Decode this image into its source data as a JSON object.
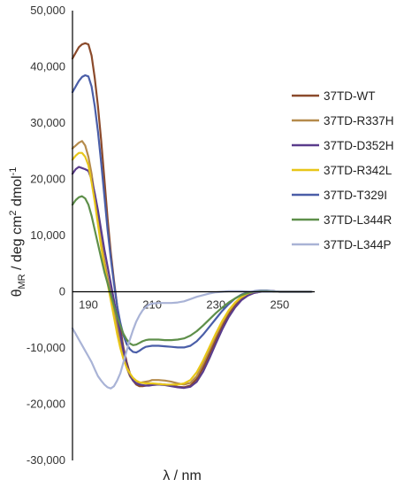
{
  "chart_data": {
    "type": "line",
    "title": "",
    "xlabel": "λ / nm",
    "ylabel": {
      "theta": "θ",
      "sub": "MR",
      "rest": " / deg cm",
      "sup1": "2",
      "rest2": " dmol",
      "sup2": "-1"
    },
    "xlim": [
      185,
      261
    ],
    "ylim": [
      -30000,
      50000
    ],
    "y_ticks": [
      50000,
      40000,
      30000,
      20000,
      10000,
      0,
      -10000,
      -20000,
      -30000
    ],
    "y_tick_labels": [
      "50,000",
      "40,000",
      "30,000",
      "20,000",
      "10,000",
      "0",
      "-10,000",
      "-20,000",
      "-30,000"
    ],
    "x_ticks": [
      190,
      210,
      230,
      250
    ],
    "x_tick_labels": [
      "190",
      "210",
      "230",
      "250"
    ],
    "grid": false,
    "legend_position": "right",
    "series": [
      {
        "name": "37TD-WT",
        "color": "#8B4A2B",
        "x": [
          185,
          186,
          187,
          188,
          189,
          190,
          191,
          192,
          193,
          194,
          195,
          196,
          197,
          198,
          199,
          200,
          201,
          202,
          203,
          204,
          205,
          206,
          207,
          208,
          209,
          210,
          212,
          214,
          216,
          218,
          220,
          222,
          224,
          226,
          228,
          230,
          232,
          234,
          236,
          238,
          240,
          242,
          244,
          246,
          248,
          250,
          252,
          255,
          258,
          260
        ],
        "y": [
          41500,
          42500,
          43500,
          44000,
          44200,
          44000,
          42000,
          38000,
          33000,
          27000,
          20000,
          13000,
          7000,
          2000,
          -2500,
          -6500,
          -10000,
          -12500,
          -14500,
          -15800,
          -16500,
          -16800,
          -16800,
          -16700,
          -16600,
          -16500,
          -16400,
          -16500,
          -16700,
          -16900,
          -17000,
          -16700,
          -15500,
          -13500,
          -11000,
          -8500,
          -6000,
          -4000,
          -2500,
          -1300,
          -600,
          -200,
          0,
          100,
          100,
          0,
          0,
          0,
          0,
          0
        ]
      },
      {
        "name": "37TD-R337H",
        "color": "#B58B4C",
        "x": [
          185,
          186,
          187,
          188,
          189,
          190,
          191,
          192,
          193,
          194,
          195,
          196,
          197,
          198,
          199,
          200,
          201,
          202,
          203,
          204,
          205,
          206,
          207,
          208,
          209,
          210,
          212,
          214,
          216,
          218,
          220,
          222,
          224,
          226,
          228,
          230,
          232,
          234,
          236,
          238,
          240,
          242,
          244,
          246,
          248,
          250,
          252,
          255,
          258,
          260
        ],
        "y": [
          25500,
          26000,
          26500,
          26800,
          26000,
          24000,
          21000,
          17000,
          13000,
          9000,
          5500,
          2500,
          -200,
          -3000,
          -6000,
          -9000,
          -11500,
          -13500,
          -15000,
          -15800,
          -16200,
          -16200,
          -16100,
          -16000,
          -15900,
          -15700,
          -15700,
          -15800,
          -16000,
          -16300,
          -16500,
          -16200,
          -15000,
          -12800,
          -10300,
          -7800,
          -5500,
          -3500,
          -2000,
          -1000,
          -400,
          -100,
          50,
          100,
          50,
          0,
          0,
          0,
          0,
          0
        ]
      },
      {
        "name": "37TD-D352H",
        "color": "#5A3C8C",
        "x": [
          185,
          186,
          187,
          188,
          189,
          190,
          191,
          192,
          193,
          194,
          195,
          196,
          197,
          198,
          199,
          200,
          201,
          202,
          203,
          204,
          205,
          206,
          207,
          208,
          209,
          210,
          212,
          214,
          216,
          218,
          220,
          222,
          224,
          226,
          228,
          230,
          232,
          234,
          236,
          238,
          240,
          242,
          244,
          246,
          248,
          250,
          252,
          255,
          258,
          260
        ],
        "y": [
          21000,
          21800,
          22200,
          22000,
          21800,
          21500,
          20000,
          17500,
          14500,
          11000,
          7500,
          4500,
          1500,
          -1500,
          -4500,
          -7500,
          -10500,
          -13000,
          -14800,
          -15800,
          -16300,
          -16500,
          -16600,
          -16700,
          -16700,
          -16600,
          -16500,
          -16600,
          -16800,
          -17000,
          -17100,
          -16900,
          -16000,
          -14200,
          -11800,
          -9200,
          -6700,
          -4500,
          -2800,
          -1500,
          -700,
          -200,
          0,
          100,
          100,
          0,
          0,
          0,
          0,
          0
        ]
      },
      {
        "name": "37TD-R342L",
        "color": "#E8C619",
        "x": [
          185,
          186,
          187,
          188,
          189,
          190,
          191,
          192,
          193,
          194,
          195,
          196,
          197,
          198,
          199,
          200,
          201,
          202,
          203,
          204,
          205,
          206,
          207,
          208,
          209,
          210,
          212,
          214,
          216,
          218,
          220,
          222,
          224,
          226,
          228,
          230,
          232,
          234,
          236,
          238,
          240,
          242,
          244,
          246,
          248,
          250,
          252,
          255,
          258,
          260
        ],
        "y": [
          23500,
          24200,
          24700,
          24700,
          24000,
          22500,
          19500,
          16000,
          12000,
          8000,
          4500,
          1500,
          -1500,
          -4500,
          -7500,
          -10000,
          -12000,
          -13500,
          -14500,
          -15300,
          -15800,
          -16100,
          -16200,
          -16300,
          -16300,
          -16300,
          -16400,
          -16500,
          -16500,
          -16500,
          -16300,
          -15700,
          -14300,
          -12200,
          -9800,
          -7400,
          -5200,
          -3300,
          -1900,
          -900,
          -300,
          0,
          100,
          100,
          0,
          0,
          0,
          0,
          0,
          0
        ]
      },
      {
        "name": "37TD-T329I",
        "color": "#4A5EA8",
        "x": [
          185,
          186,
          187,
          188,
          189,
          190,
          191,
          192,
          193,
          194,
          195,
          196,
          197,
          198,
          199,
          200,
          201,
          202,
          203,
          204,
          205,
          206,
          207,
          208,
          209,
          210,
          212,
          214,
          216,
          218,
          220,
          222,
          224,
          226,
          228,
          230,
          232,
          234,
          236,
          238,
          240,
          242,
          244,
          246,
          248,
          250,
          252,
          255,
          258,
          260
        ],
        "y": [
          35500,
          36500,
          37500,
          38200,
          38500,
          38300,
          36500,
          33000,
          28500,
          23000,
          17000,
          11000,
          6000,
          1500,
          -2500,
          -5500,
          -7800,
          -9300,
          -10200,
          -10700,
          -10800,
          -10500,
          -10100,
          -9800,
          -9700,
          -9600,
          -9600,
          -9700,
          -9800,
          -9900,
          -9900,
          -9600,
          -8800,
          -7600,
          -6200,
          -4800,
          -3400,
          -2200,
          -1200,
          -500,
          -100,
          100,
          200,
          200,
          100,
          0,
          0,
          0,
          0,
          0
        ]
      },
      {
        "name": "37TD-L344R",
        "color": "#5E8F4A",
        "x": [
          185,
          186,
          187,
          188,
          189,
          190,
          191,
          192,
          193,
          194,
          195,
          196,
          197,
          198,
          199,
          200,
          201,
          202,
          203,
          204,
          205,
          206,
          207,
          208,
          209,
          210,
          212,
          214,
          216,
          218,
          220,
          222,
          224,
          226,
          228,
          230,
          232,
          234,
          236,
          238,
          240,
          242,
          244,
          246,
          248,
          250,
          252,
          255,
          258,
          260
        ],
        "y": [
          15500,
          16300,
          16800,
          17000,
          16600,
          15500,
          13500,
          11000,
          8500,
          6000,
          3500,
          1500,
          -500,
          -2500,
          -4500,
          -6000,
          -7500,
          -8500,
          -9200,
          -9500,
          -9400,
          -9100,
          -8800,
          -8600,
          -8500,
          -8500,
          -8500,
          -8600,
          -8600,
          -8500,
          -8300,
          -7800,
          -7000,
          -6000,
          -4900,
          -3800,
          -2800,
          -1900,
          -1200,
          -600,
          -200,
          0,
          100,
          100,
          50,
          0,
          0,
          0,
          0,
          0
        ]
      },
      {
        "name": "37TD-L344P",
        "color": "#A9B3D6",
        "x": [
          185,
          186,
          187,
          188,
          189,
          190,
          191,
          192,
          193,
          194,
          195,
          196,
          197,
          198,
          199,
          200,
          201,
          202,
          203,
          204,
          205,
          206,
          207,
          208,
          209,
          210,
          212,
          214,
          216,
          218,
          220,
          222,
          224,
          226,
          228,
          230,
          232,
          234,
          236,
          238,
          240,
          242,
          244,
          246,
          248,
          250,
          252,
          255,
          258,
          260
        ],
        "y": [
          -6500,
          -7500,
          -8500,
          -9500,
          -10500,
          -11500,
          -12500,
          -13800,
          -15000,
          -15800,
          -16500,
          -17000,
          -17200,
          -16800,
          -15800,
          -14500,
          -12500,
          -10500,
          -8500,
          -6800,
          -5300,
          -4200,
          -3300,
          -2700,
          -2300,
          -2100,
          -2000,
          -2000,
          -2000,
          -1900,
          -1700,
          -1300,
          -900,
          -600,
          -300,
          -100,
          0,
          100,
          100,
          100,
          50,
          0,
          0,
          0,
          0,
          0,
          0,
          0,
          0,
          0
        ]
      }
    ]
  }
}
